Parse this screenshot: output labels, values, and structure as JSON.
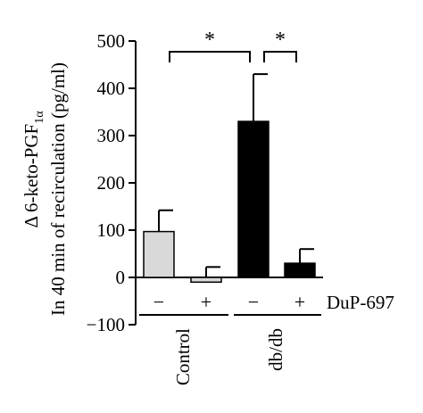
{
  "chart_data": {
    "type": "bar",
    "ylabel_lines": [
      "Δ 6-keto-PGF",
      "In 40 min of recirculation (pg/ml)"
    ],
    "ylabel_sub": "1α",
    "ylim": [
      -100,
      500
    ],
    "yticks": [
      -100,
      0,
      100,
      200,
      300,
      400,
      500
    ],
    "ytick_labels": [
      "−100",
      "0",
      "100",
      "200",
      "300",
      "400",
      "500"
    ],
    "bars": [
      {
        "group": "Control",
        "sign": "−",
        "value": 97,
        "error": 45,
        "color": "#d9d9d9"
      },
      {
        "group": "Control",
        "sign": "+",
        "value": -10,
        "error": 32,
        "color": "#d9d9d9"
      },
      {
        "group": "db/db",
        "sign": "−",
        "value": 330,
        "error": 100,
        "color": "#000000"
      },
      {
        "group": "db/db",
        "sign": "+",
        "value": 30,
        "error": 30,
        "color": "#000000"
      }
    ],
    "groups": [
      "Control",
      "db/db"
    ],
    "treatment_label": "DuP-697",
    "significance": [
      {
        "from": 0,
        "to": 2,
        "label": "*"
      },
      {
        "from": 2,
        "to": 3,
        "label": "*"
      }
    ]
  }
}
